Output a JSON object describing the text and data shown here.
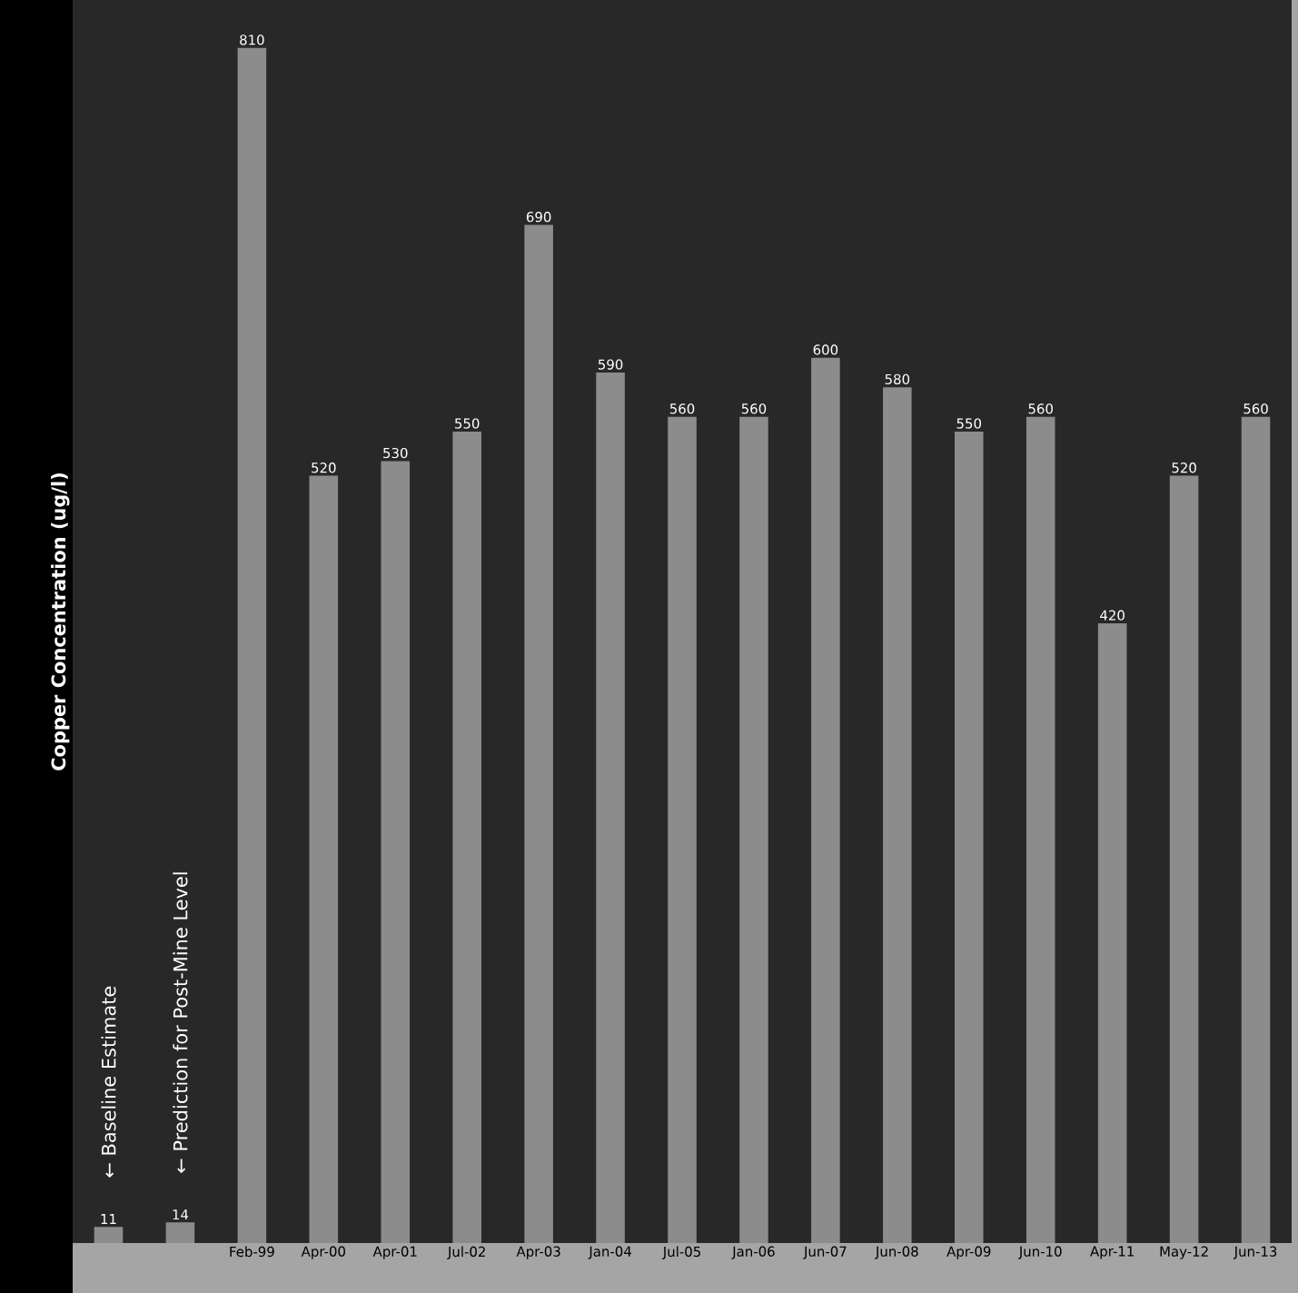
{
  "chart_data": {
    "type": "bar",
    "ylabel": "Copper Concentration (ug/l)",
    "categories": [
      null,
      null,
      "Feb-99",
      "Apr-00",
      "Apr-01",
      "Jul-02",
      "Apr-03",
      "Jan-04",
      "Jul-05",
      "Jan-06",
      "Jun-07",
      "Jun-08",
      "Apr-09",
      "Jun-10",
      "Apr-11",
      "May-12",
      "Jun-13"
    ],
    "values": [
      11,
      14,
      810,
      520,
      530,
      550,
      690,
      590,
      560,
      560,
      600,
      580,
      550,
      560,
      420,
      520,
      560
    ],
    "color": "#8c8c8c",
    "data_labels": true,
    "annotations": [
      "← Baseline Estimate",
      "← Prediction for Post-Mine Level"
    ]
  }
}
